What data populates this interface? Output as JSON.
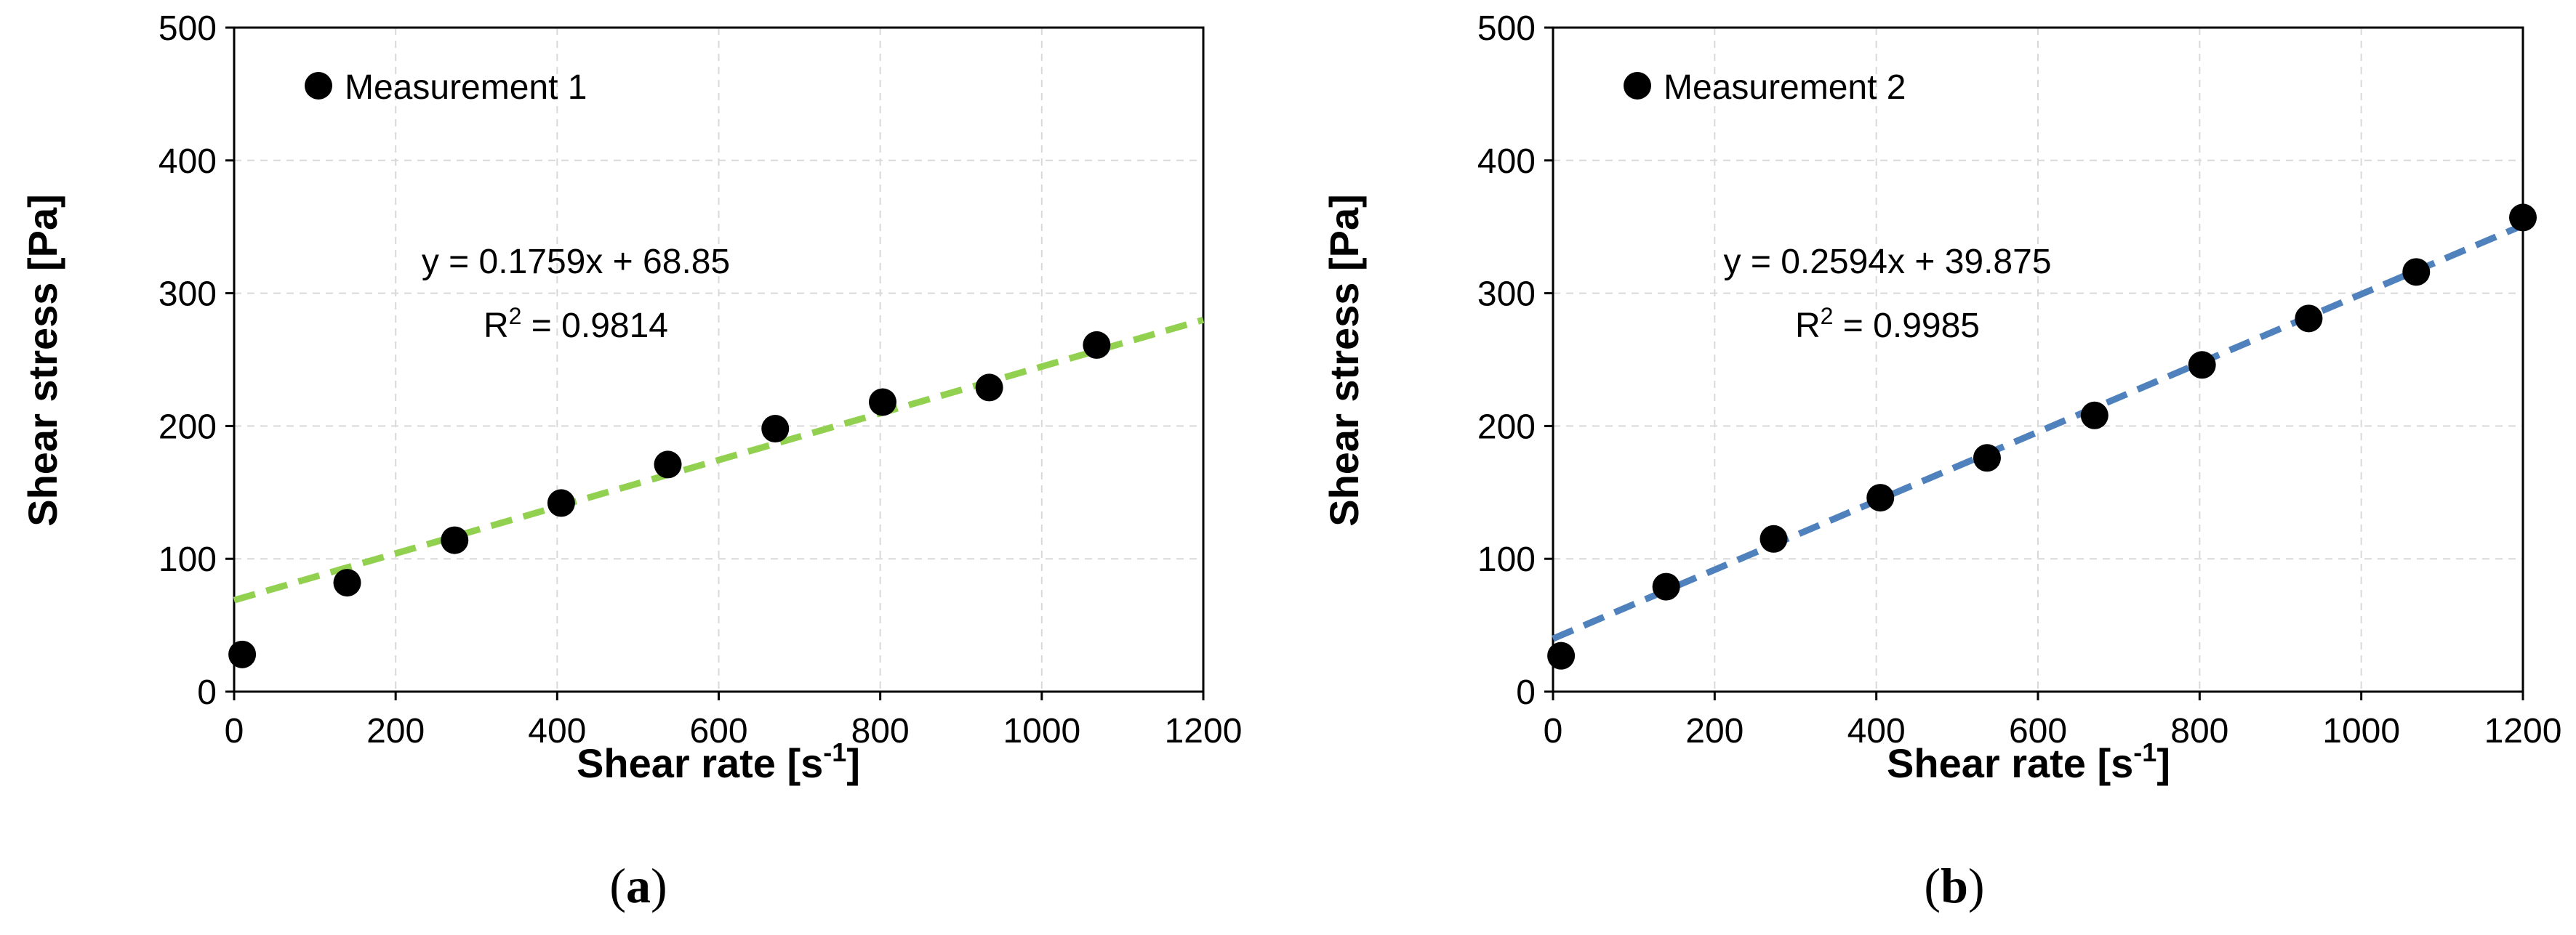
{
  "chart_data": [
    {
      "type": "scatter",
      "panel_label": "a",
      "xlabel": "Shear rate [s",
      "xlabel_sup": "-1",
      "xlabel_tail": "]",
      "ylabel": "Shear stress [Pa]",
      "xlim": [
        0,
        1200
      ],
      "ylim": [
        0,
        500
      ],
      "xticks": [
        0,
        200,
        400,
        600,
        800,
        1000,
        1200
      ],
      "yticks": [
        0,
        100,
        200,
        300,
        400,
        500
      ],
      "grid": true,
      "legend": {
        "label": "Measurement 1",
        "position": "top-left"
      },
      "series": [
        {
          "name": "Measurement 1",
          "x": [
            10,
            140,
            273,
            405,
            537,
            670,
            803,
            935,
            1068
          ],
          "y": [
            28,
            82,
            114,
            142,
            171,
            198,
            218,
            229,
            261
          ]
        }
      ],
      "trendline": {
        "slope": 0.1759,
        "intercept": 68.85,
        "color": "#92d050",
        "style": "dashed"
      },
      "equation_label": "y = 0.1759x + 68.85",
      "r2_prefix": "R",
      "r2_sup": "2",
      "r2_value": " = 0.9814"
    },
    {
      "type": "scatter",
      "panel_label": "b",
      "xlabel": "Shear rate [s",
      "xlabel_sup": "-1",
      "xlabel_tail": "]",
      "ylabel": "Shear stress [Pa]",
      "xlim": [
        0,
        1200
      ],
      "ylim": [
        0,
        500
      ],
      "xticks": [
        0,
        200,
        400,
        600,
        800,
        1000,
        1200
      ],
      "yticks": [
        0,
        100,
        200,
        300,
        400,
        500
      ],
      "grid": true,
      "legend": {
        "label": "Measurement 2",
        "position": "top-left"
      },
      "series": [
        {
          "name": "Measurement 2",
          "x": [
            10,
            140,
            273,
            405,
            537,
            670,
            803,
            935,
            1068,
            1200
          ],
          "y": [
            27,
            79,
            115,
            146,
            176,
            208,
            246,
            281,
            316,
            357
          ]
        }
      ],
      "trendline": {
        "slope": 0.2594,
        "intercept": 39.875,
        "color": "#4f81bd",
        "style": "dashed"
      },
      "equation_label": "y = 0.2594x + 39.875",
      "r2_prefix": "R",
      "r2_sup": "2",
      "r2_value": " = 0.9985"
    }
  ]
}
